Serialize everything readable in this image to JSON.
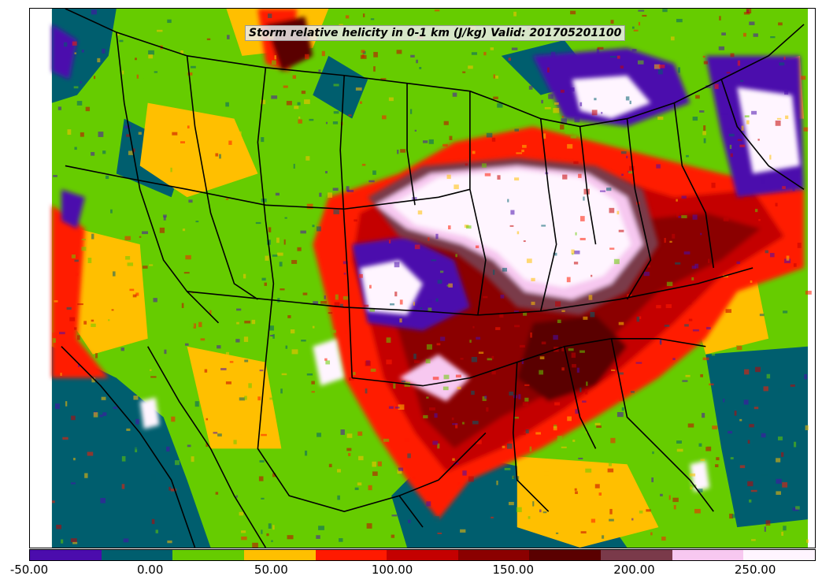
{
  "map": {
    "title": "Storm relative helicity in 0-1 km (J/kg) Valid: 201705201100"
  },
  "colorbar": {
    "colors": [
      "#4b0cad",
      "#005e6e",
      "#66cc00",
      "#ffbf00",
      "#ff1a00",
      "#c40000",
      "#8b0000",
      "#5a0000",
      "#7a3a4a",
      "#f7c8f0",
      "#fff5ff"
    ],
    "ticks": [
      "-50.00",
      "0.00",
      "50.00",
      "100.00",
      "150.00",
      "200.00",
      "250.00"
    ],
    "tick_values": [
      -50,
      0,
      50,
      100,
      150,
      200,
      250
    ],
    "range": [
      -50,
      275
    ]
  }
}
